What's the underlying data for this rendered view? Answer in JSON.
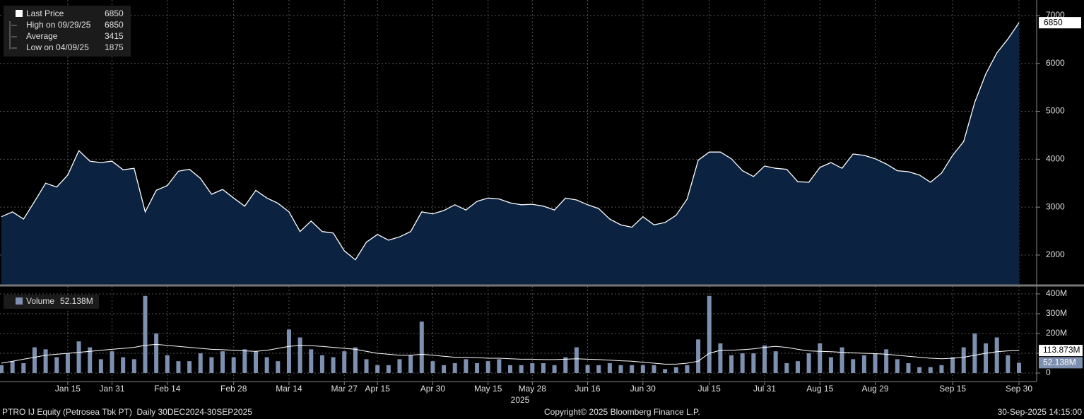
{
  "chart_data": [
    {
      "type": "area",
      "categories": [
        null,
        null,
        null,
        null,
        null,
        null,
        "Jan 15",
        null,
        null,
        null,
        "Jan 31",
        null,
        null,
        null,
        null,
        "Feb 14",
        null,
        null,
        null,
        null,
        null,
        "Feb 28",
        null,
        null,
        null,
        null,
        "Mar 14",
        null,
        null,
        null,
        null,
        "Mar 27",
        null,
        null,
        "Apr 15",
        null,
        null,
        null,
        null,
        "Apr 30",
        null,
        null,
        null,
        null,
        "May 15",
        null,
        null,
        null,
        "May 28",
        null,
        null,
        null,
        null,
        "Jun 16",
        null,
        null,
        null,
        null,
        "Jun 30",
        null,
        null,
        null,
        null,
        null,
        "Jul 15",
        null,
        null,
        null,
        null,
        "Jul 31",
        null,
        null,
        null,
        null,
        "Aug 15",
        null,
        null,
        null,
        null,
        "Aug 29",
        null,
        null,
        null,
        null,
        null,
        null,
        "Sep 15",
        null,
        null,
        null,
        null,
        null,
        "Sep 30"
      ],
      "series": [
        {
          "name": "Last Price",
          "color": "#ffffff",
          "fill": "#0b2340",
          "values": [
            2800,
            2900,
            2750,
            3120,
            3500,
            3420,
            3670,
            4180,
            3960,
            3930,
            3960,
            3780,
            3810,
            2900,
            3350,
            3450,
            3750,
            3790,
            3600,
            3270,
            3370,
            3190,
            3020,
            3350,
            3190,
            3080,
            2900,
            2490,
            2710,
            2490,
            2460,
            2090,
            1900,
            2270,
            2430,
            2310,
            2380,
            2490,
            2900,
            2860,
            2930,
            3050,
            2940,
            3120,
            3190,
            3170,
            3090,
            3050,
            3060,
            3020,
            2940,
            3190,
            3150,
            3050,
            2970,
            2750,
            2630,
            2580,
            2800,
            2630,
            2680,
            2830,
            3170,
            3980,
            4150,
            4150,
            4010,
            3760,
            3640,
            3860,
            3810,
            3790,
            3530,
            3520,
            3830,
            3930,
            3810,
            4110,
            4080,
            4010,
            3900,
            3760,
            3740,
            3670,
            3520,
            3710,
            4080,
            4370,
            5190,
            5780,
            6220,
            6510,
            6850
          ]
        }
      ],
      "legend_stats": [
        {
          "label": "High on 09/29/25",
          "value": 6850
        },
        {
          "label": "Average",
          "value": 3415
        },
        {
          "label": "Low on 04/09/25",
          "value": 1875
        }
      ],
      "ylim": [
        1380,
        7250
      ],
      "yticks": [
        2000,
        3000,
        4000,
        5000,
        6000,
        7000
      ],
      "grid": true
    },
    {
      "type": "bar",
      "series": [
        {
          "name": "Volume",
          "color": "#7d90b0",
          "values": [
            40,
            60,
            50,
            130,
            120,
            80,
            100,
            160,
            130,
            70,
            110,
            80,
            70,
            390,
            200,
            90,
            60,
            60,
            100,
            80,
            110,
            80,
            120,
            110,
            80,
            60,
            220,
            180,
            120,
            90,
            80,
            110,
            130,
            70,
            40,
            40,
            70,
            90,
            260,
            60,
            40,
            50,
            70,
            50,
            60,
            70,
            40,
            40,
            50,
            50,
            40,
            80,
            130,
            40,
            40,
            50,
            40,
            40,
            40,
            40,
            20,
            30,
            40,
            170,
            390,
            150,
            90,
            100,
            100,
            140,
            110,
            50,
            60,
            100,
            150,
            80,
            130,
            70,
            90,
            100,
            120,
            70,
            50,
            30,
            30,
            40,
            80,
            130,
            200,
            150,
            180,
            90,
            52.138
          ],
          "value_labels": [
            null,
            null,
            null,
            null,
            null,
            null,
            null,
            null,
            null,
            null,
            null,
            null,
            null,
            null,
            null,
            null,
            null,
            null,
            null,
            null,
            null,
            null,
            null,
            null,
            null,
            null,
            null,
            null,
            null,
            null,
            null,
            null,
            null,
            null,
            null,
            null,
            null,
            null,
            null,
            null,
            null,
            null,
            null,
            null,
            null,
            null,
            null,
            null,
            null,
            null,
            null,
            null,
            null,
            null,
            null,
            null,
            null,
            null,
            null,
            null,
            null,
            null,
            null,
            null,
            null,
            null,
            null,
            null,
            null,
            null,
            null,
            null,
            null,
            null,
            null,
            null,
            null,
            null,
            null,
            null,
            null,
            null,
            null,
            null,
            null,
            null,
            null,
            null,
            null,
            null,
            null,
            null,
            "52.138M"
          ]
        },
        {
          "type": "line",
          "color": "#ffffff",
          "values": [
            50,
            60,
            70,
            80,
            90,
            95,
            100,
            105,
            110,
            115,
            120,
            125,
            130,
            140,
            145,
            140,
            135,
            130,
            125,
            120,
            118,
            115,
            112,
            110,
            115,
            125,
            135,
            140,
            138,
            135,
            130,
            125,
            120,
            110,
            100,
            95,
            90,
            90,
            95,
            90,
            85,
            80,
            80,
            78,
            75,
            75,
            72,
            70,
            70,
            68,
            68,
            70,
            72,
            70,
            68,
            65,
            62,
            60,
            55,
            50,
            45,
            45,
            50,
            60,
            100,
            115,
            115,
            118,
            122,
            130,
            135,
            130,
            120,
            112,
            110,
            108,
            105,
            102,
            100,
            98,
            95,
            90,
            85,
            80,
            75,
            72,
            75,
            80,
            90,
            100,
            108,
            112,
            113.873
          ],
          "value_labels": [
            null,
            null,
            null,
            null,
            null,
            null,
            null,
            null,
            null,
            null,
            null,
            null,
            null,
            null,
            null,
            null,
            null,
            null,
            null,
            null,
            null,
            null,
            null,
            null,
            null,
            null,
            null,
            null,
            null,
            null,
            null,
            null,
            null,
            null,
            null,
            null,
            null,
            null,
            null,
            null,
            null,
            null,
            null,
            null,
            null,
            null,
            null,
            null,
            null,
            null,
            null,
            null,
            null,
            null,
            null,
            null,
            null,
            null,
            null,
            null,
            null,
            null,
            null,
            null,
            null,
            null,
            null,
            null,
            null,
            null,
            null,
            null,
            null,
            null,
            null,
            null,
            null,
            null,
            null,
            null,
            null,
            null,
            null,
            null,
            null,
            null,
            null,
            null,
            null,
            null,
            null,
            null,
            "113.873M"
          ]
        }
      ],
      "ylim": [
        -43,
        432
      ],
      "yticks": [
        0,
        {
          "value": 100,
          "label": "100M"
        },
        {
          "value": 200,
          "label": "200M"
        },
        {
          "value": 300,
          "label": "300M"
        },
        {
          "value": 400,
          "label": "400M"
        }
      ],
      "grid": true
    }
  ],
  "x_axis_year": "2025",
  "footer": {
    "left": "PTRO IJ Equity (Petrosea Tbk PT)  Daily 30DEC2024-30SEP2025",
    "center": "Copyright© 2025 Bloomberg Finance L.P.",
    "right": "30-Sep-2025 14:15:00"
  }
}
